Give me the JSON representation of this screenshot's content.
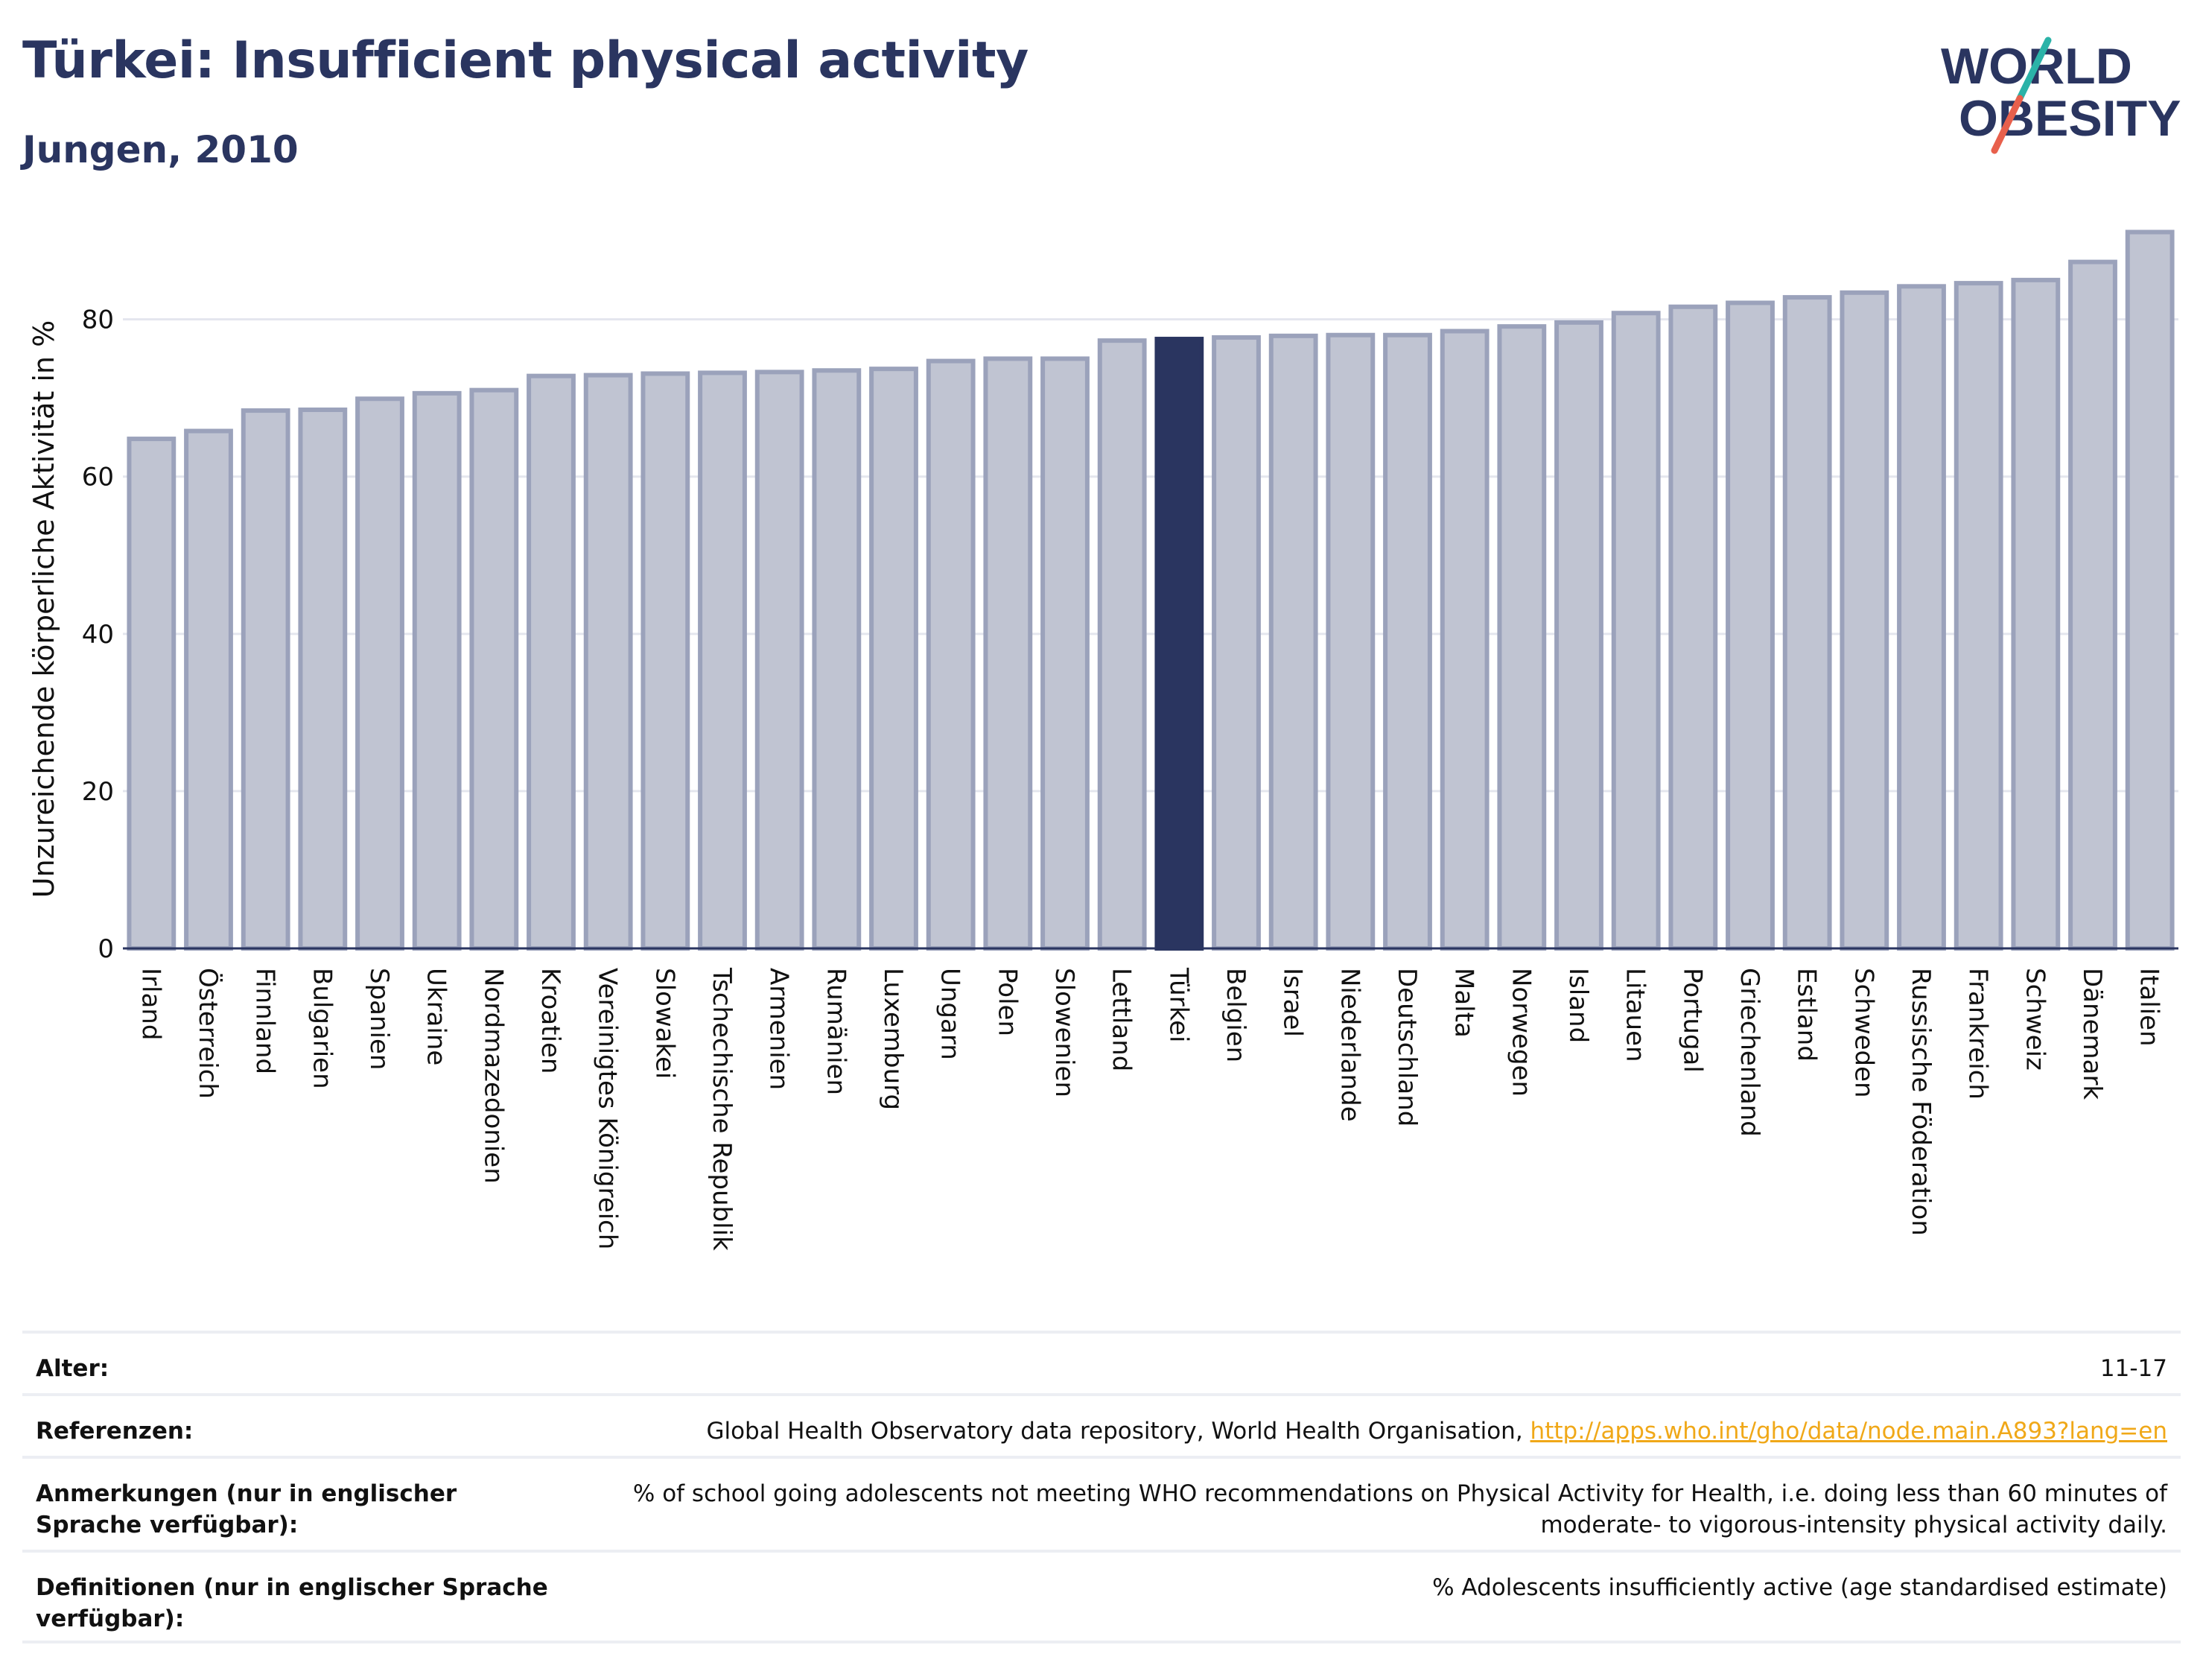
{
  "header": {
    "title": "Türkei: Insufficient physical activity",
    "subtitle": "Jungen, 2010"
  },
  "logo": {
    "line1": "WORLD",
    "line2": "OBESITY",
    "text_color": "#2a3560",
    "slash_colors": [
      "#2bb3a8",
      "#e8604c"
    ]
  },
  "colors": {
    "highlight": "#2a3560",
    "bar_fill": "#c0c4d2",
    "bar_stroke": "#9ba2bb",
    "grid": "#e4e6ee"
  },
  "chart_data": {
    "type": "bar",
    "title": "Türkei: Insufficient physical activity",
    "subtitle": "Jungen, 2010",
    "xlabel": "",
    "ylabel": "Unzureichende körperliche Aktivität in %",
    "ylim": [
      0,
      92
    ],
    "yticks": [
      0,
      20,
      40,
      60,
      80
    ],
    "grid": true,
    "highlight": "Türkei",
    "categories": [
      "Irland",
      "Österreich",
      "Finnland",
      "Bulgarien",
      "Spanien",
      "Ukraine",
      "Nordmazedonien",
      "Kroatien",
      "Vereinigtes Königreich",
      "Slowakei",
      "Tschechische Republik",
      "Armenien",
      "Rumänien",
      "Luxemburg",
      "Ungarn",
      "Polen",
      "Slowenien",
      "Lettland",
      "Türkei",
      "Belgien",
      "Israel",
      "Niederlande",
      "Deutschland",
      "Malta",
      "Norwegen",
      "Island",
      "Litauen",
      "Portugal",
      "Griechenland",
      "Estland",
      "Schweden",
      "Russische Föderation",
      "Frankreich",
      "Schweiz",
      "Dänemark",
      "Italien"
    ],
    "values": [
      64.8,
      65.8,
      68.4,
      68.5,
      69.9,
      70.6,
      71.0,
      72.8,
      72.9,
      73.1,
      73.2,
      73.3,
      73.5,
      73.7,
      74.7,
      75.0,
      75.0,
      77.3,
      77.5,
      77.7,
      77.9,
      78.0,
      78.0,
      78.5,
      79.1,
      79.6,
      80.8,
      81.6,
      82.1,
      82.8,
      83.4,
      84.2,
      84.6,
      85.0,
      87.3,
      91.1
    ]
  },
  "meta": [
    {
      "label": "Alter:",
      "value": "11-17"
    },
    {
      "label": "Referenzen:",
      "value": "Global Health Observatory data repository, World Health Organisation, ",
      "link": "http://apps.who.int/gho/data/node.main.A893?lang=en"
    },
    {
      "label": "Anmerkungen (nur in englischer Sprache verfügbar):",
      "value": "% of school going adolescents not meeting WHO recommendations on Physical Activity for Health, i.e. doing less than 60 minutes of moderate- to vigorous-intensity physical activity daily."
    },
    {
      "label": "Definitionen (nur in englischer Sprache verfügbar):",
      "value": "% Adolescents insufficiently active (age standardised estimate)"
    }
  ]
}
